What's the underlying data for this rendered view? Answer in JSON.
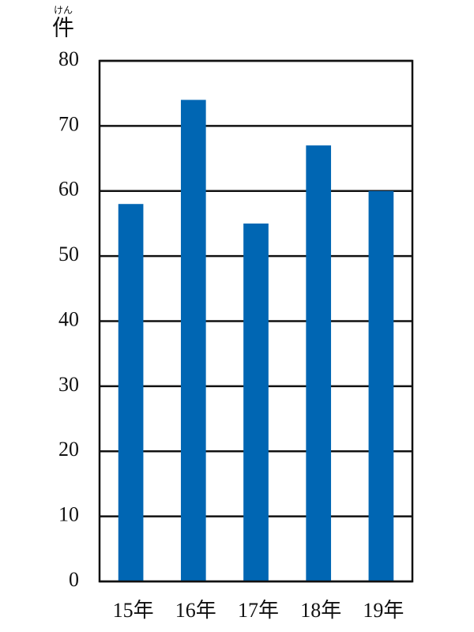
{
  "chart_data": {
    "type": "bar",
    "y_label": "件",
    "y_label_reading": "けん",
    "categories": [
      "15年",
      "16年",
      "17年",
      "18年",
      "19年"
    ],
    "values": [
      58,
      74,
      55,
      67,
      60
    ],
    "color": "#0066b3",
    "ylim": [
      0,
      80
    ],
    "yticks": [
      0,
      10,
      20,
      30,
      40,
      50,
      60,
      70,
      80
    ],
    "grid": true
  }
}
